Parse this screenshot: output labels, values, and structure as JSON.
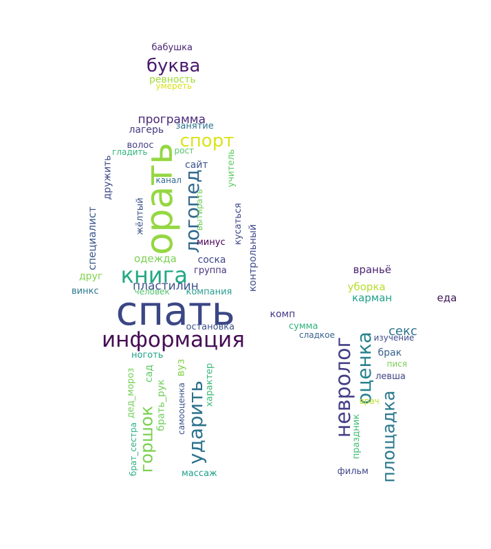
{
  "word_cloud": {
    "words": [
      {
        "text": "спать",
        "color": "#3b4785"
      },
      {
        "text": "информация",
        "color": "#450d54"
      },
      {
        "text": "орать",
        "color": "#95d743"
      },
      {
        "text": "книга",
        "color": "#22a884"
      },
      {
        "text": "логопед",
        "color": "#31688e"
      },
      {
        "text": "спорт",
        "color": "#dce319"
      },
      {
        "text": "буква",
        "color": "#481a6c"
      },
      {
        "text": "невролог",
        "color": "#433e85"
      },
      {
        "text": "оценка",
        "color": "#26828e"
      },
      {
        "text": "площадка",
        "color": "#2a788e"
      },
      {
        "text": "горшок",
        "color": "#7ad151"
      },
      {
        "text": "ударить",
        "color": "#2c728e"
      },
      {
        "text": "пластилин",
        "color": "#3b528b"
      },
      {
        "text": "программа",
        "color": "#482878"
      },
      {
        "text": "секс",
        "color": "#2c728e"
      },
      {
        "text": "одежда",
        "color": "#7ad151"
      },
      {
        "text": "враньё",
        "color": "#481f70"
      },
      {
        "text": "уборка",
        "color": "#b5de2b"
      },
      {
        "text": "карман",
        "color": "#1fa088"
      },
      {
        "text": "еда",
        "color": "#3e1458"
      },
      {
        "text": "комп",
        "color": "#443983"
      },
      {
        "text": "сайт",
        "color": "#3b528b"
      },
      {
        "text": "специалист",
        "color": "#39568c"
      },
      {
        "text": "контрольный",
        "color": "#3e4989"
      },
      {
        "text": "лагерь",
        "color": "#453781"
      },
      {
        "text": "занятие",
        "color": "#2c728e"
      },
      {
        "text": "волос",
        "color": "#433e85"
      },
      {
        "text": "гладить",
        "color": "#2fb47c"
      },
      {
        "text": "рост",
        "color": "#52c569"
      },
      {
        "text": "канал",
        "color": "#31688e"
      },
      {
        "text": "учитель",
        "color": "#5ec962"
      },
      {
        "text": "дружить",
        "color": "#3e4989"
      },
      {
        "text": "жёлтый",
        "color": "#3b528b"
      },
      {
        "text": "вытирать",
        "color": "#6ece58"
      },
      {
        "text": "минус",
        "color": "#440154"
      },
      {
        "text": "кусаться",
        "color": "#3e4989"
      },
      {
        "text": "соска",
        "color": "#404688"
      },
      {
        "text": "группа",
        "color": "#46327e"
      },
      {
        "text": "друг",
        "color": "#7fd34e"
      },
      {
        "text": "винкс",
        "color": "#2a788e"
      },
      {
        "text": "человек",
        "color": "#50c46a"
      },
      {
        "text": "компания",
        "color": "#2a9d8f"
      },
      {
        "text": "остановка",
        "color": "#3b528b"
      },
      {
        "text": "сумма",
        "color": "#2db27d"
      },
      {
        "text": "сладкое",
        "color": "#355f8d"
      },
      {
        "text": "изучение",
        "color": "#3e4c8a"
      },
      {
        "text": "брак",
        "color": "#355f8d"
      },
      {
        "text": "пися",
        "color": "#7ad151"
      },
      {
        "text": "левша",
        "color": "#414487"
      },
      {
        "text": "врач",
        "color": "#c2df23"
      },
      {
        "text": "праздник",
        "color": "#3fbc73"
      },
      {
        "text": "фильм",
        "color": "#404688"
      },
      {
        "text": "ноготь",
        "color": "#20a486"
      },
      {
        "text": "вуз",
        "color": "#84d44b"
      },
      {
        "text": "сад",
        "color": "#5ec962"
      },
      {
        "text": "брать_рук",
        "color": "#6ece58"
      },
      {
        "text": "дед_мороз",
        "color": "#73d056"
      },
      {
        "text": "самооценка",
        "color": "#3b528b"
      },
      {
        "text": "характер",
        "color": "#38b977"
      },
      {
        "text": "брат_сестра",
        "color": "#29af7f"
      },
      {
        "text": "массаж",
        "color": "#1f9e89"
      },
      {
        "text": "бабушка",
        "color": "#481f70"
      },
      {
        "text": "ревность",
        "color": "#a0da39"
      },
      {
        "text": "умереть",
        "color": "#d8e219"
      }
    ]
  }
}
